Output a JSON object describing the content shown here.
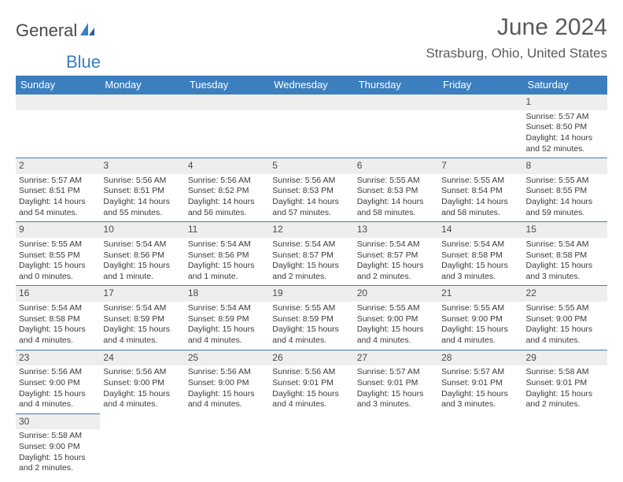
{
  "logo": {
    "part1": "General",
    "part2": "Blue"
  },
  "title": "June 2024",
  "location": "Strasburg, Ohio, United States",
  "colors": {
    "header_bg": "#3b7fbf",
    "header_text": "#ffffff",
    "daynum_bg": "#eeeeee",
    "body_text": "#3a3a3a",
    "rule": "#3b7fbf",
    "logo_blue": "#3b7fbf",
    "logo_gray": "#4a4a4a"
  },
  "days_of_week": [
    "Sunday",
    "Monday",
    "Tuesday",
    "Wednesday",
    "Thursday",
    "Friday",
    "Saturday"
  ],
  "weeks": [
    [
      null,
      null,
      null,
      null,
      null,
      null,
      {
        "n": "1",
        "sr": "Sunrise: 5:57 AM",
        "ss": "Sunset: 8:50 PM",
        "d1": "Daylight: 14 hours",
        "d2": "and 52 minutes."
      }
    ],
    [
      {
        "n": "2",
        "sr": "Sunrise: 5:57 AM",
        "ss": "Sunset: 8:51 PM",
        "d1": "Daylight: 14 hours",
        "d2": "and 54 minutes."
      },
      {
        "n": "3",
        "sr": "Sunrise: 5:56 AM",
        "ss": "Sunset: 8:51 PM",
        "d1": "Daylight: 14 hours",
        "d2": "and 55 minutes."
      },
      {
        "n": "4",
        "sr": "Sunrise: 5:56 AM",
        "ss": "Sunset: 8:52 PM",
        "d1": "Daylight: 14 hours",
        "d2": "and 56 minutes."
      },
      {
        "n": "5",
        "sr": "Sunrise: 5:56 AM",
        "ss": "Sunset: 8:53 PM",
        "d1": "Daylight: 14 hours",
        "d2": "and 57 minutes."
      },
      {
        "n": "6",
        "sr": "Sunrise: 5:55 AM",
        "ss": "Sunset: 8:53 PM",
        "d1": "Daylight: 14 hours",
        "d2": "and 58 minutes."
      },
      {
        "n": "7",
        "sr": "Sunrise: 5:55 AM",
        "ss": "Sunset: 8:54 PM",
        "d1": "Daylight: 14 hours",
        "d2": "and 58 minutes."
      },
      {
        "n": "8",
        "sr": "Sunrise: 5:55 AM",
        "ss": "Sunset: 8:55 PM",
        "d1": "Daylight: 14 hours",
        "d2": "and 59 minutes."
      }
    ],
    [
      {
        "n": "9",
        "sr": "Sunrise: 5:55 AM",
        "ss": "Sunset: 8:55 PM",
        "d1": "Daylight: 15 hours",
        "d2": "and 0 minutes."
      },
      {
        "n": "10",
        "sr": "Sunrise: 5:54 AM",
        "ss": "Sunset: 8:56 PM",
        "d1": "Daylight: 15 hours",
        "d2": "and 1 minute."
      },
      {
        "n": "11",
        "sr": "Sunrise: 5:54 AM",
        "ss": "Sunset: 8:56 PM",
        "d1": "Daylight: 15 hours",
        "d2": "and 1 minute."
      },
      {
        "n": "12",
        "sr": "Sunrise: 5:54 AM",
        "ss": "Sunset: 8:57 PM",
        "d1": "Daylight: 15 hours",
        "d2": "and 2 minutes."
      },
      {
        "n": "13",
        "sr": "Sunrise: 5:54 AM",
        "ss": "Sunset: 8:57 PM",
        "d1": "Daylight: 15 hours",
        "d2": "and 2 minutes."
      },
      {
        "n": "14",
        "sr": "Sunrise: 5:54 AM",
        "ss": "Sunset: 8:58 PM",
        "d1": "Daylight: 15 hours",
        "d2": "and 3 minutes."
      },
      {
        "n": "15",
        "sr": "Sunrise: 5:54 AM",
        "ss": "Sunset: 8:58 PM",
        "d1": "Daylight: 15 hours",
        "d2": "and 3 minutes."
      }
    ],
    [
      {
        "n": "16",
        "sr": "Sunrise: 5:54 AM",
        "ss": "Sunset: 8:58 PM",
        "d1": "Daylight: 15 hours",
        "d2": "and 4 minutes."
      },
      {
        "n": "17",
        "sr": "Sunrise: 5:54 AM",
        "ss": "Sunset: 8:59 PM",
        "d1": "Daylight: 15 hours",
        "d2": "and 4 minutes."
      },
      {
        "n": "18",
        "sr": "Sunrise: 5:54 AM",
        "ss": "Sunset: 8:59 PM",
        "d1": "Daylight: 15 hours",
        "d2": "and 4 minutes."
      },
      {
        "n": "19",
        "sr": "Sunrise: 5:55 AM",
        "ss": "Sunset: 8:59 PM",
        "d1": "Daylight: 15 hours",
        "d2": "and 4 minutes."
      },
      {
        "n": "20",
        "sr": "Sunrise: 5:55 AM",
        "ss": "Sunset: 9:00 PM",
        "d1": "Daylight: 15 hours",
        "d2": "and 4 minutes."
      },
      {
        "n": "21",
        "sr": "Sunrise: 5:55 AM",
        "ss": "Sunset: 9:00 PM",
        "d1": "Daylight: 15 hours",
        "d2": "and 4 minutes."
      },
      {
        "n": "22",
        "sr": "Sunrise: 5:55 AM",
        "ss": "Sunset: 9:00 PM",
        "d1": "Daylight: 15 hours",
        "d2": "and 4 minutes."
      }
    ],
    [
      {
        "n": "23",
        "sr": "Sunrise: 5:56 AM",
        "ss": "Sunset: 9:00 PM",
        "d1": "Daylight: 15 hours",
        "d2": "and 4 minutes."
      },
      {
        "n": "24",
        "sr": "Sunrise: 5:56 AM",
        "ss": "Sunset: 9:00 PM",
        "d1": "Daylight: 15 hours",
        "d2": "and 4 minutes."
      },
      {
        "n": "25",
        "sr": "Sunrise: 5:56 AM",
        "ss": "Sunset: 9:00 PM",
        "d1": "Daylight: 15 hours",
        "d2": "and 4 minutes."
      },
      {
        "n": "26",
        "sr": "Sunrise: 5:56 AM",
        "ss": "Sunset: 9:01 PM",
        "d1": "Daylight: 15 hours",
        "d2": "and 4 minutes."
      },
      {
        "n": "27",
        "sr": "Sunrise: 5:57 AM",
        "ss": "Sunset: 9:01 PM",
        "d1": "Daylight: 15 hours",
        "d2": "and 3 minutes."
      },
      {
        "n": "28",
        "sr": "Sunrise: 5:57 AM",
        "ss": "Sunset: 9:01 PM",
        "d1": "Daylight: 15 hours",
        "d2": "and 3 minutes."
      },
      {
        "n": "29",
        "sr": "Sunrise: 5:58 AM",
        "ss": "Sunset: 9:01 PM",
        "d1": "Daylight: 15 hours",
        "d2": "and 2 minutes."
      }
    ],
    [
      {
        "n": "30",
        "sr": "Sunrise: 5:58 AM",
        "ss": "Sunset: 9:00 PM",
        "d1": "Daylight: 15 hours",
        "d2": "and 2 minutes."
      },
      null,
      null,
      null,
      null,
      null,
      null
    ]
  ]
}
